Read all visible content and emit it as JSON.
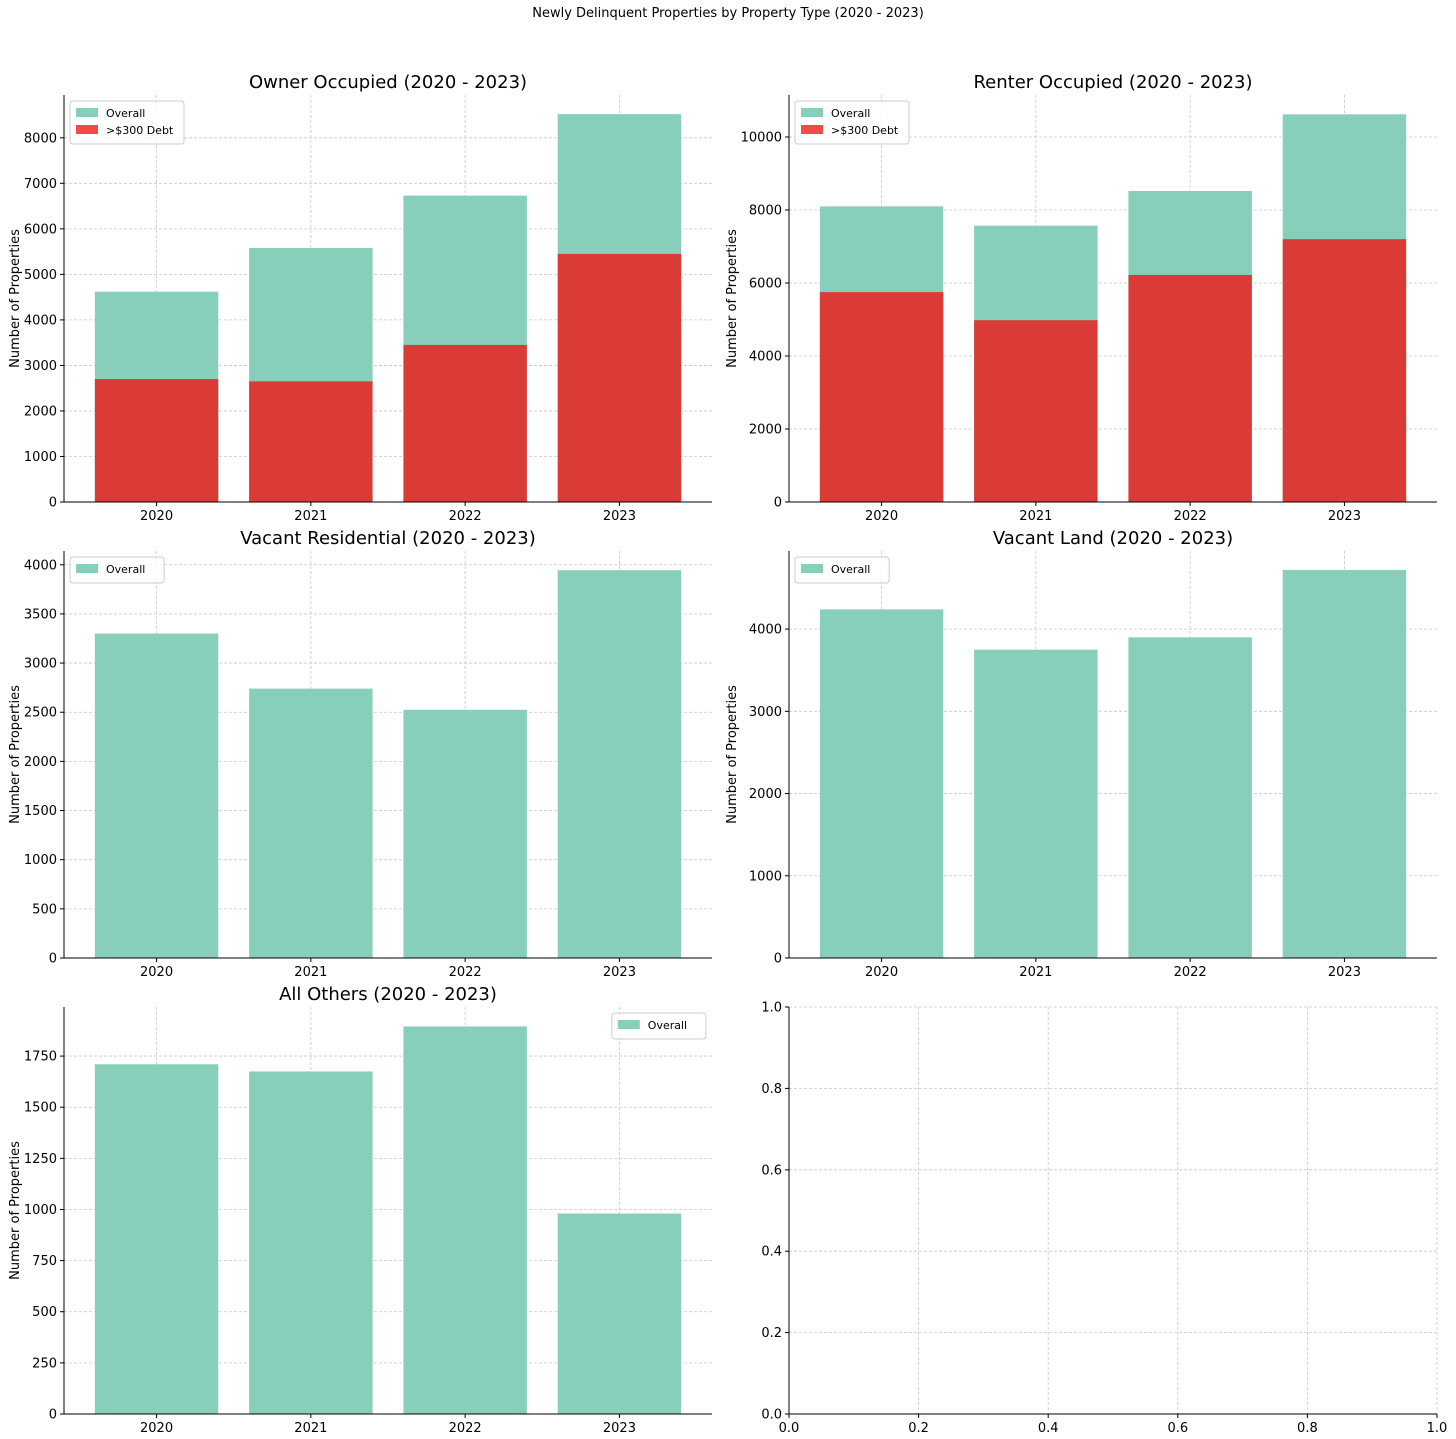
{
  "suptitle": "Newly Delinquent Properties by Property Type (2020 - 2023)",
  "colors": {
    "overall": "#88cfbb",
    "debt": "#db3b37",
    "debt_legend": "#f04b4b",
    "grid": "#c8c8c8"
  },
  "chart_data": [
    {
      "type": "bar",
      "title": "Owner Occupied (2020 - 2023)",
      "ylabel": "Number of Properties",
      "xlabel": "",
      "categories": [
        "2020",
        "2021",
        "2022",
        "2023"
      ],
      "ylim": [
        0,
        8940
      ],
      "yticks": [
        "0",
        "1000",
        "2000",
        "3000",
        "4000",
        "5000",
        "6000",
        "7000",
        "8000"
      ],
      "grid": true,
      "legend": "upper-left",
      "series": [
        {
          "name": "Overall",
          "values": [
            4620,
            5580,
            6730,
            8520
          ]
        },
        {
          "name": ">$300 Debt",
          "values": [
            2700,
            2650,
            3450,
            5450
          ]
        }
      ]
    },
    {
      "type": "bar",
      "title": "Renter Occupied (2020 - 2023)",
      "ylabel": "Number of Properties",
      "xlabel": "",
      "categories": [
        "2020",
        "2021",
        "2022",
        "2023"
      ],
      "ylim": [
        0,
        11150
      ],
      "yticks": [
        "0",
        "2000",
        "4000",
        "6000",
        "8000",
        "10000"
      ],
      "grid": true,
      "legend": "upper-left",
      "series": [
        {
          "name": "Overall",
          "values": [
            8100,
            7570,
            8520,
            10620
          ]
        },
        {
          "name": ">$300 Debt",
          "values": [
            5750,
            4980,
            6220,
            7200
          ]
        }
      ]
    },
    {
      "type": "bar",
      "title": "Vacant Residential (2020 - 2023)",
      "ylabel": "Number of Properties",
      "xlabel": "",
      "categories": [
        "2020",
        "2021",
        "2022",
        "2023"
      ],
      "ylim": [
        0,
        4140
      ],
      "yticks": [
        "0",
        "500",
        "1000",
        "1500",
        "2000",
        "2500",
        "3000",
        "3500",
        "4000"
      ],
      "grid": true,
      "legend": "upper-left",
      "series": [
        {
          "name": "Overall",
          "values": [
            3300,
            2740,
            2525,
            3945
          ]
        }
      ]
    },
    {
      "type": "bar",
      "title": "Vacant Land (2020 - 2023)",
      "ylabel": "Number of Properties",
      "xlabel": "",
      "categories": [
        "2020",
        "2021",
        "2022",
        "2023"
      ],
      "ylim": [
        0,
        4950
      ],
      "yticks": [
        "0",
        "1000",
        "2000",
        "3000",
        "4000"
      ],
      "grid": true,
      "legend": "upper-left",
      "series": [
        {
          "name": "Overall",
          "values": [
            4240,
            3750,
            3900,
            4720
          ]
        }
      ]
    },
    {
      "type": "bar",
      "title": "All Others (2020 - 2023)",
      "ylabel": "Number of Properties",
      "xlabel": "",
      "categories": [
        "2020",
        "2021",
        "2022",
        "2023"
      ],
      "ylim": [
        0,
        1990
      ],
      "yticks": [
        "0",
        "250",
        "500",
        "750",
        "1000",
        "1250",
        "1500",
        "1750"
      ],
      "grid": true,
      "legend": "upper-right",
      "series": [
        {
          "name": "Overall",
          "values": [
            1710,
            1675,
            1895,
            980
          ]
        }
      ]
    },
    {
      "type": "scatter",
      "title": "",
      "ylabel": "",
      "xlabel": "",
      "xlim": [
        0,
        1
      ],
      "ylim": [
        0,
        1
      ],
      "xticks": [
        "0.0",
        "0.2",
        "0.4",
        "0.6",
        "0.8",
        "1.0"
      ],
      "yticks": [
        "0.0",
        "0.2",
        "0.4",
        "0.6",
        "0.8",
        "1.0"
      ],
      "grid": true,
      "series": []
    }
  ]
}
